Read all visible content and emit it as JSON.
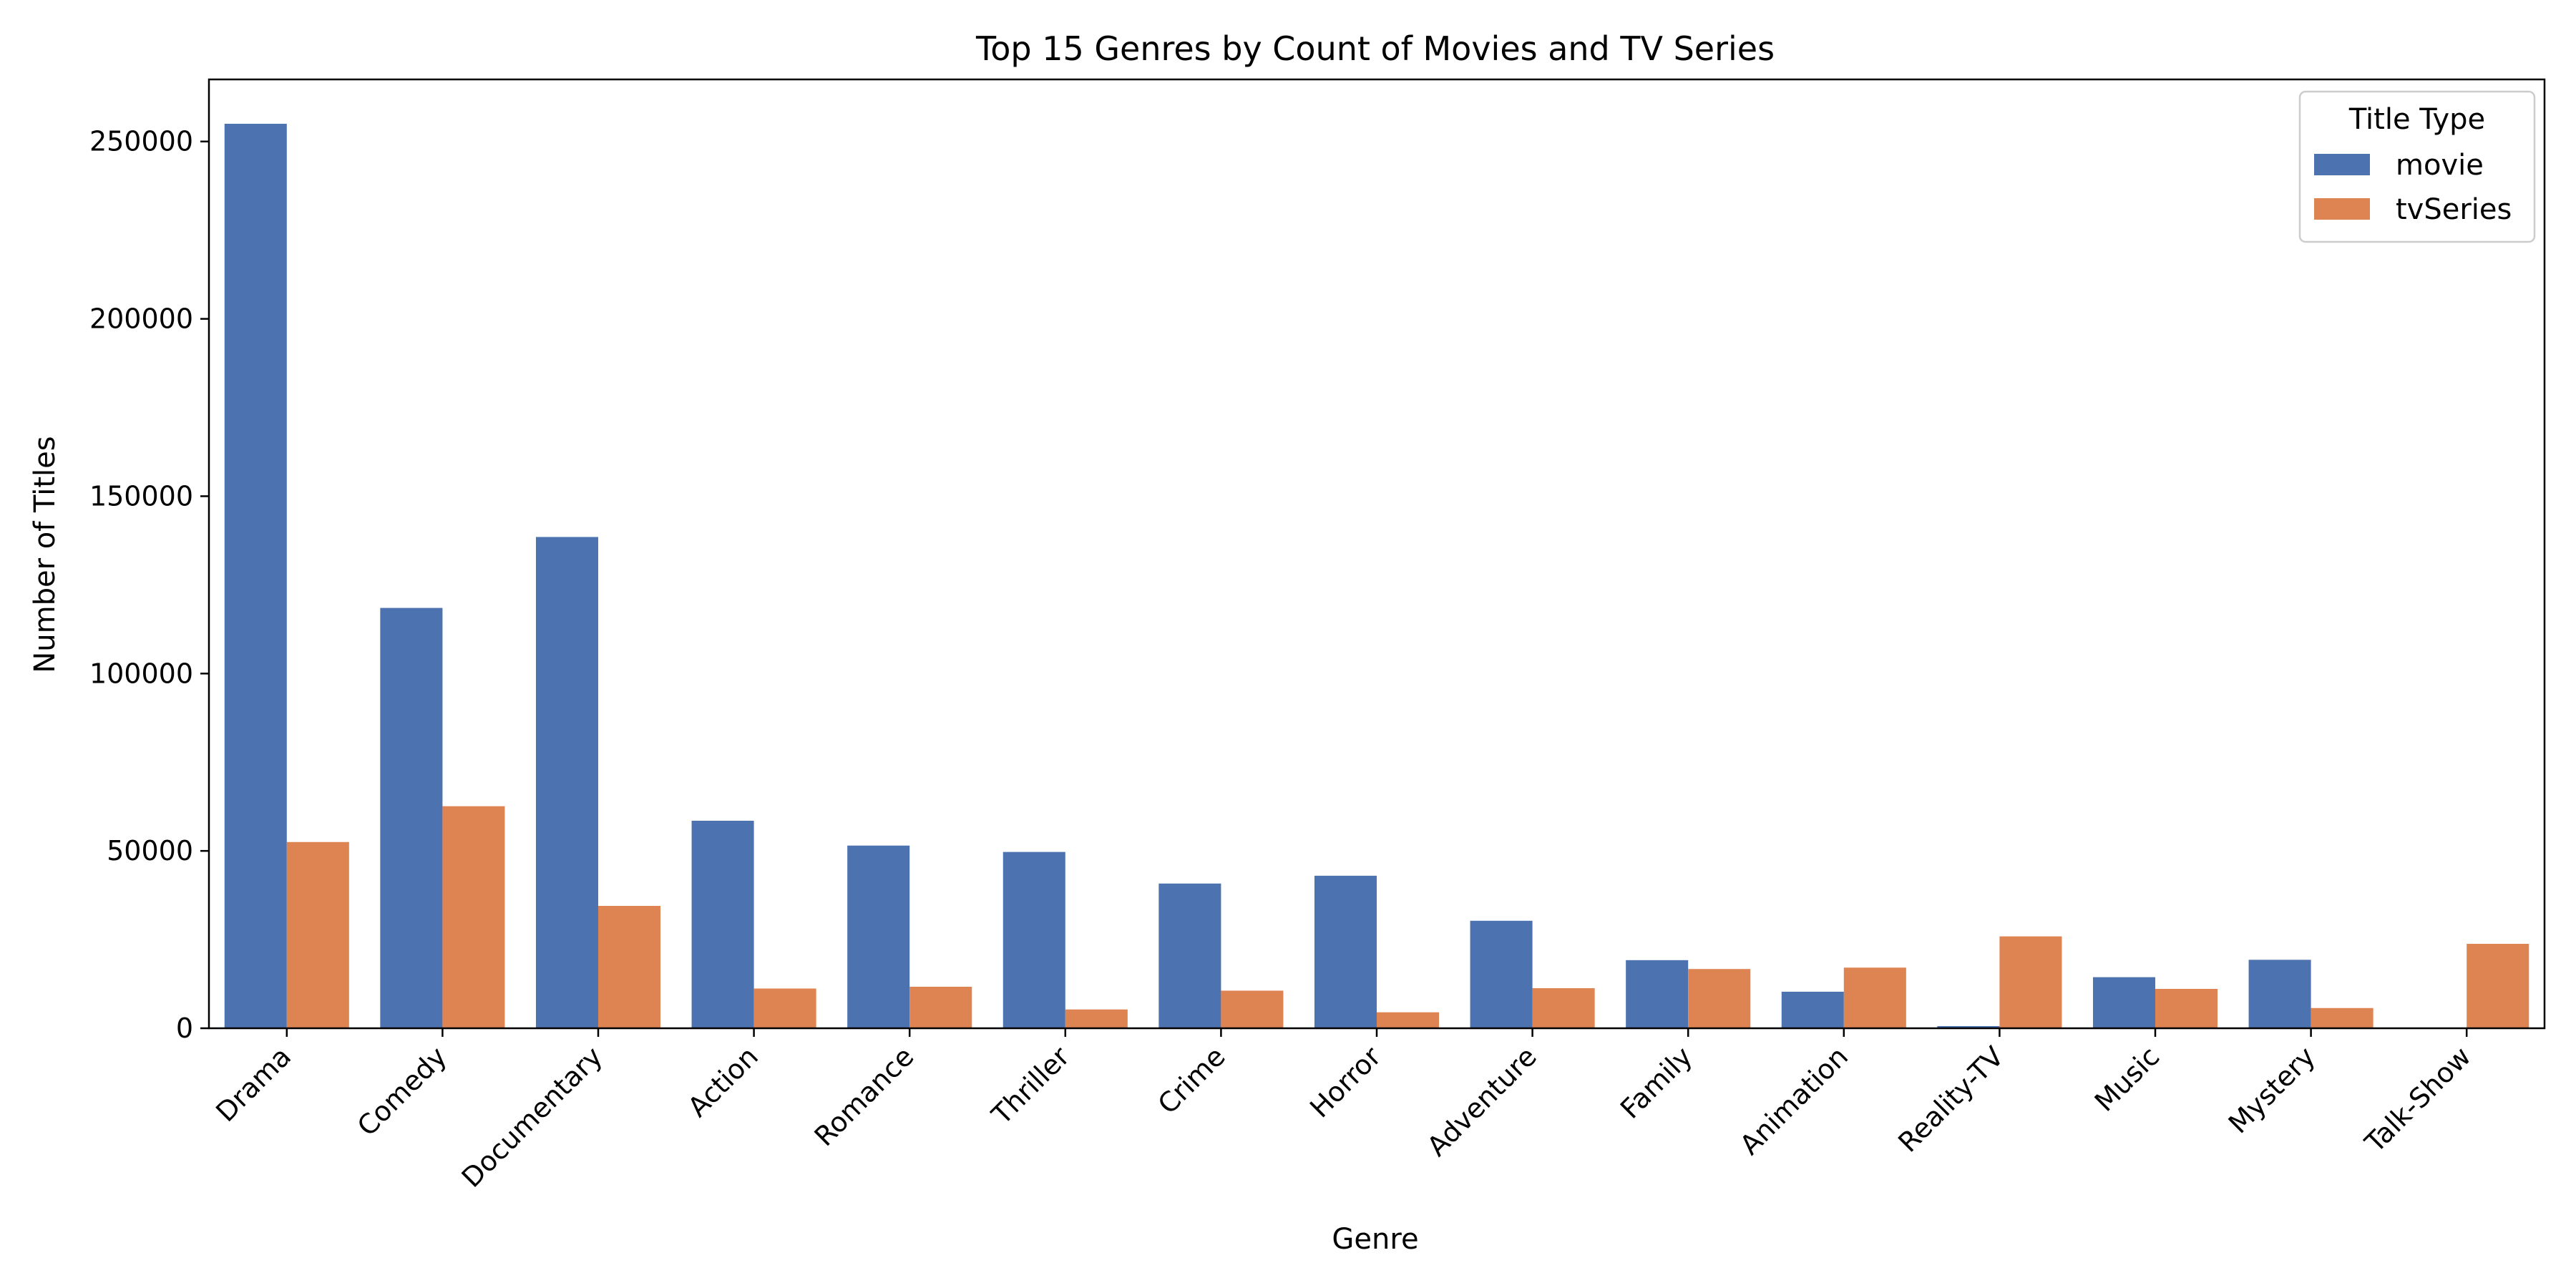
{
  "chart_data": {
    "type": "bar",
    "title": "Top 15 Genres by Count of Movies and TV Series",
    "xlabel": "Genre",
    "ylabel": "Number of Titles",
    "ylim": [
      0,
      267500
    ],
    "yticks": [
      0,
      50000,
      100000,
      150000,
      200000,
      250000
    ],
    "categories": [
      "Drama",
      "Comedy",
      "Documentary",
      "Action",
      "Romance",
      "Thriller",
      "Crime",
      "Horror",
      "Adventure",
      "Family",
      "Animation",
      "Reality-TV",
      "Music",
      "Mystery",
      "Talk-Show"
    ],
    "series": [
      {
        "name": "movie",
        "color": "#4c72b0",
        "values": [
          255000,
          118500,
          138500,
          58500,
          51500,
          49700,
          40800,
          43000,
          30300,
          19200,
          10300,
          600,
          14400,
          19300,
          0
        ]
      },
      {
        "name": "tvSeries",
        "color": "#dd8452",
        "values": [
          52500,
          62600,
          34500,
          11200,
          11700,
          5300,
          10600,
          4500,
          11300,
          16700,
          17100,
          25900,
          11100,
          5700,
          23800
        ]
      }
    ],
    "legend": {
      "title": "Title Type",
      "position": "top-right"
    },
    "grid": false
  }
}
